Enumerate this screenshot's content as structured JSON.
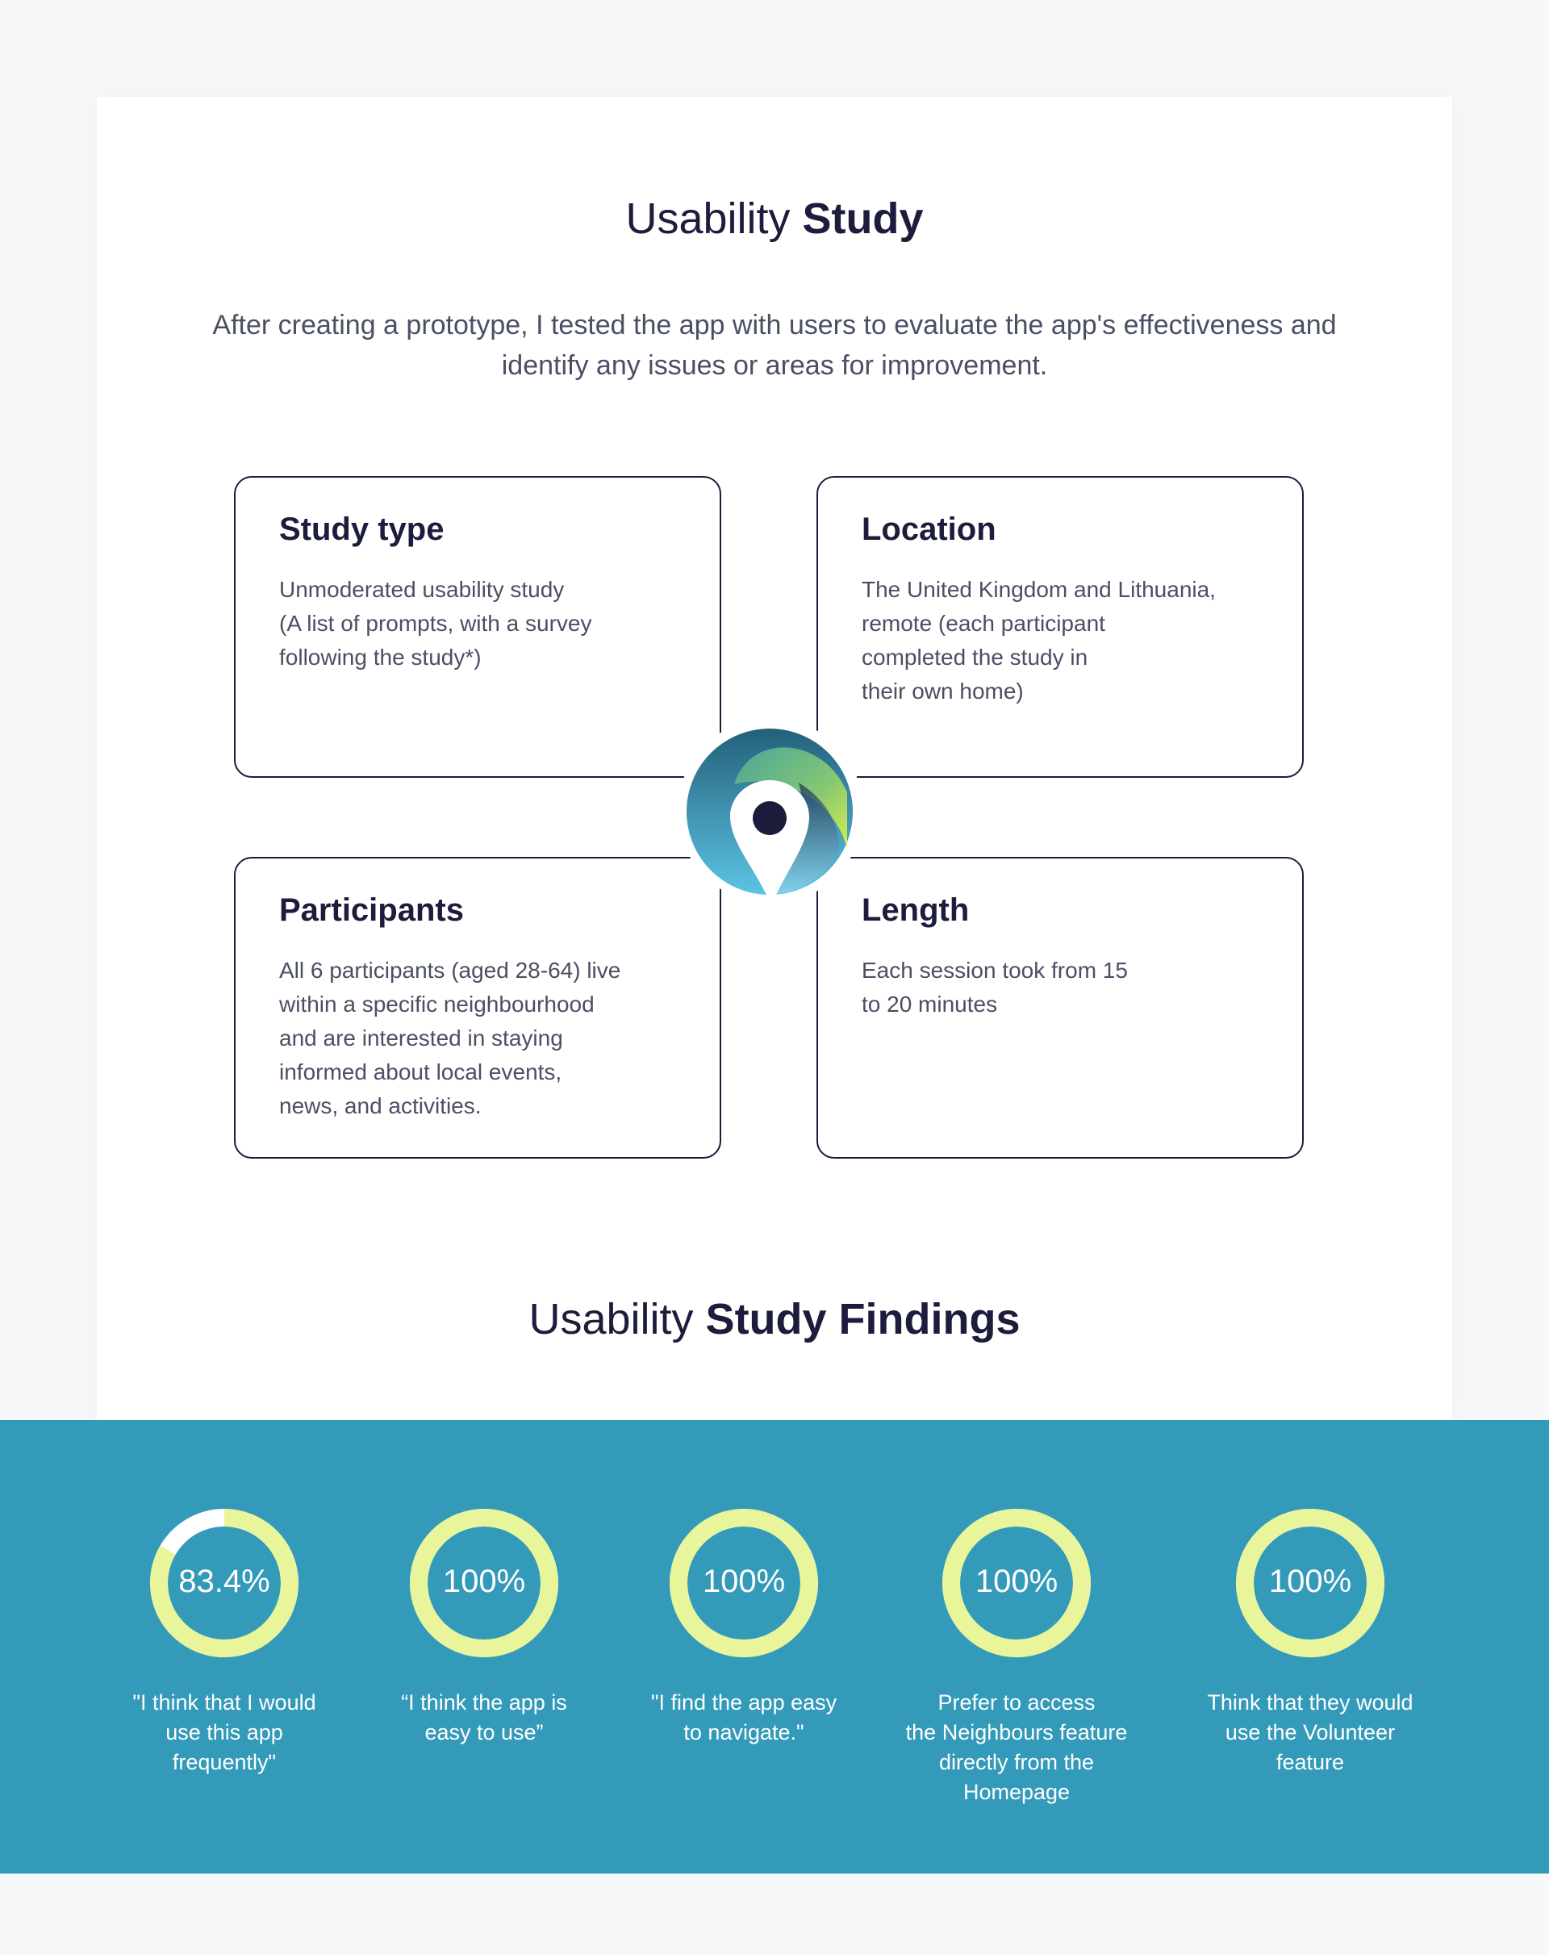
{
  "header": {
    "title_light": "Usability",
    "title_bold": "Study",
    "intro": "After creating a prototype, I tested the app with users to evaluate the app's effectiveness and identify any issues or areas for improvement."
  },
  "cards": [
    {
      "title": "Study type",
      "body": "Unmoderated usability study\n(A list of prompts, with a survey\nfollowing the study*)"
    },
    {
      "title": "Location",
      "body": "The United Kingdom and Lithuania,\nremote (each participant\ncompleted the study in\ntheir own home)"
    },
    {
      "title": "Participants",
      "body": "All 6 participants (aged 28-64) live\nwithin a specific neighbourhood\nand are interested in staying\ninformed about local events,\nnews, and activities."
    },
    {
      "title": "Length",
      "body": "Each session took from 15\nto 20 minutes"
    }
  ],
  "logo_icon": "location-pin-logo",
  "findings": {
    "title_light": "Usability",
    "title_bold": "Study Findings",
    "colors": {
      "band": "#349ab9",
      "ring": "#e8f59a",
      "ring_remaining": "#ffffff"
    },
    "stats": [
      {
        "value": 83.4,
        "label": "83.4%",
        "caption": "\"I think that I would\nuse this app\nfrequently\""
      },
      {
        "value": 100,
        "label": "100%",
        "caption": "“I think the app is\neasy to use”"
      },
      {
        "value": 100,
        "label": "100%",
        "caption": "\"I find the app easy\nto navigate.\""
      },
      {
        "value": 100,
        "label": "100%",
        "caption": "Prefer to access\nthe Neighbours feature\ndirectly from the\nHomepage"
      },
      {
        "value": 100,
        "label": "100%",
        "caption": "Think that they would\nuse the Volunteer\nfeature"
      }
    ]
  }
}
